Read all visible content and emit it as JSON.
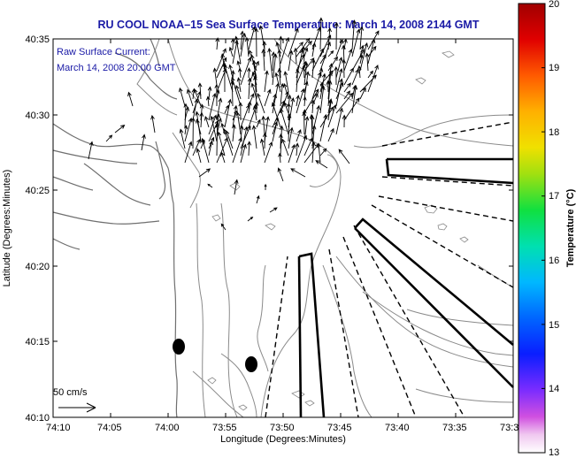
{
  "title": "RU COOL  NOAA–15  Sea Surface Temperature:  March 14, 2008 2144 GMT",
  "inset": {
    "line1": "Raw Surface Current:",
    "line2": "March 14, 2008 20:00 GMT"
  },
  "axes": {
    "xlabel": "Longitude (Degrees:Minutes)",
    "ylabel": "Latitude (Degrees:Minutes)",
    "x_ticks": [
      "74:10",
      "74:05",
      "74:00",
      "73:55",
      "73:50",
      "73:45",
      "73:40",
      "73:35",
      "73:3"
    ],
    "y_ticks": [
      "40:35",
      "40:30",
      "40:25",
      "40:20",
      "40:15",
      "40:10"
    ]
  },
  "scale_bar": {
    "label": "50 cm/s"
  },
  "colorbar": {
    "label": "Temperature (°C)",
    "ticks": [
      "20",
      "19",
      "18",
      "17",
      "16",
      "15",
      "14",
      "13"
    ],
    "min": 13,
    "max": 20
  },
  "colors": {
    "title": "#1a1aa6",
    "contour": "#8a8a8a",
    "coast": "#6f6f6f"
  }
}
